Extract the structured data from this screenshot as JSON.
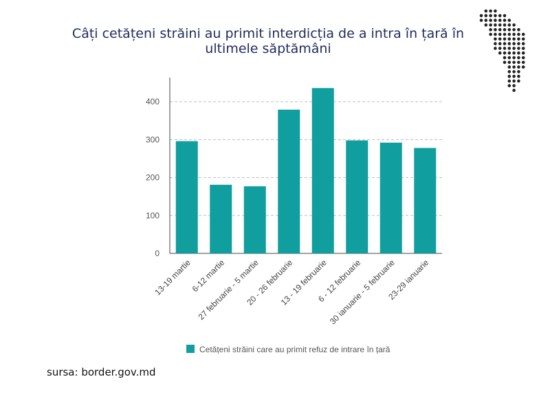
{
  "header": {
    "title_line1": "Câți cetățeni străini au primit interdicția de a intra în țară în",
    "title_line2": "ultimele săptămâni"
  },
  "logo": {
    "icon": "moldova-map-dots-icon"
  },
  "chart_data": {
    "type": "bar",
    "title": "Câți cetățeni străini au primit interdicția de a intra în țară în ultimele săptămâni",
    "categories": [
      "13-19 martie",
      "6-12 martie",
      "27 februarie - 5 martie",
      "20 - 26 februarie",
      "13 - 19 februarie",
      "6 - 12 februarie",
      "30 ianuarie - 5 februarie",
      "23-29 ianuarie"
    ],
    "series": [
      {
        "name": "Cetățeni străini care au primit refuz de intrare în țară",
        "values": [
          296,
          181,
          177,
          379,
          436,
          298,
          292,
          278
        ],
        "color": "#119e9e"
      }
    ],
    "yticks": [
      0,
      100,
      200,
      300,
      400
    ],
    "ylim": [
      0,
      460
    ],
    "grid": true,
    "legend": "bottom"
  },
  "footer": {
    "source": "sursa: border.gov.md"
  }
}
